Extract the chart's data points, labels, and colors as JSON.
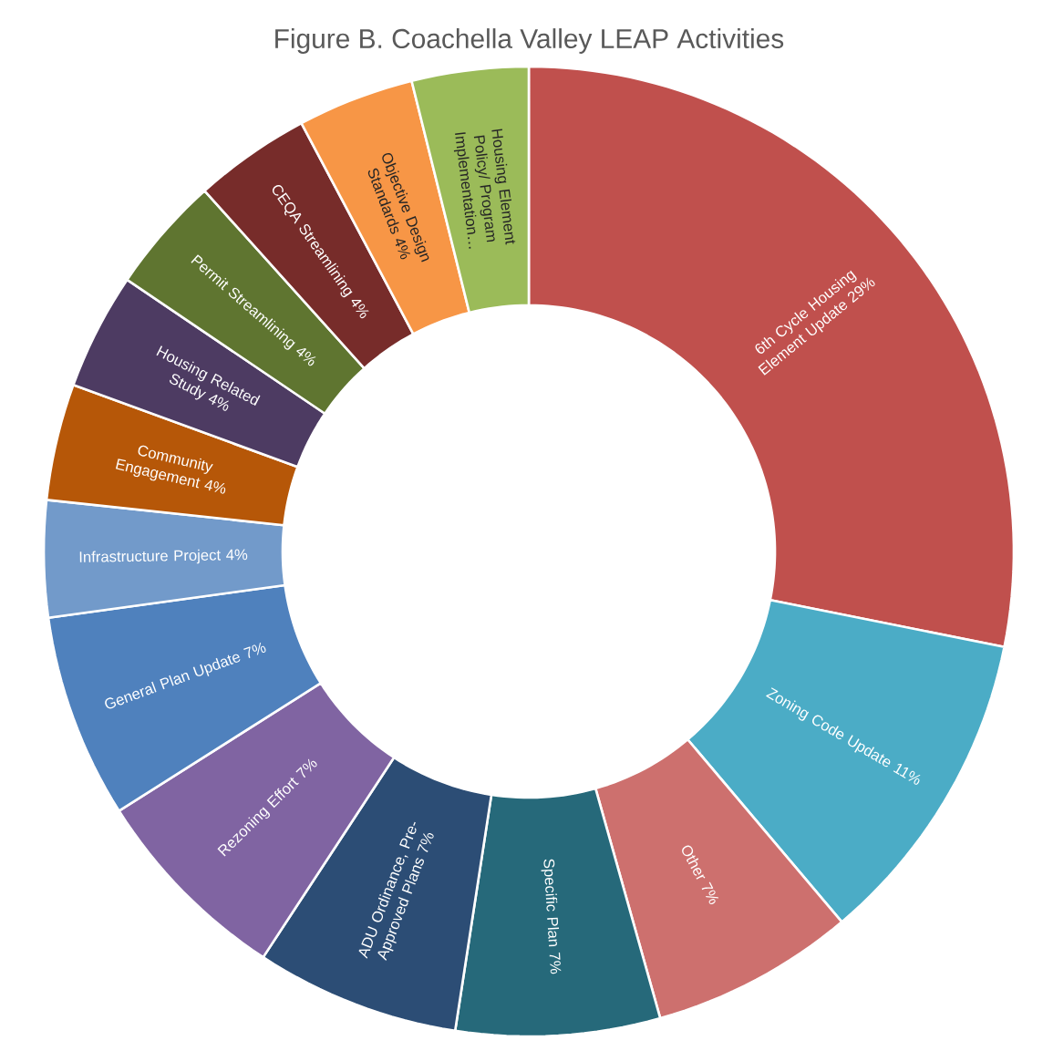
{
  "chart_data": {
    "type": "donut",
    "title": "Figure B. Coachella Valley LEAP Activities",
    "categories": [
      "6th Cycle Housing Element Update",
      "Zoning Code Update",
      "Other",
      "Specific Plan",
      "ADU Ordinance, Pre-Approved Plans",
      "Rezoning Effort",
      "General Plan Update",
      "Infrastructure Project",
      "Community Engagement",
      "Housing Related Study",
      "Permit Streamlining",
      "CEQA Streamlining",
      "Objective Design Standards",
      "Housing Element Policy/ Program Implementation…"
    ],
    "values": [
      29,
      11,
      7,
      7,
      7,
      7,
      7,
      4,
      4,
      4,
      4,
      4,
      4,
      4
    ],
    "value_labels": [
      "29%",
      "11%",
      "7%",
      "7%",
      "7%",
      "7%",
      "7%",
      "4%",
      "4%",
      "4%",
      "4%",
      "4%",
      "4%",
      null
    ],
    "colors": [
      "#C0504D",
      "#4BACC6",
      "#CD706E",
      "#26697A",
      "#2C4D75",
      "#8064A2",
      "#4F81BD",
      "#729ACA",
      "#B65708",
      "#4D3B62",
      "#5F7530",
      "#772C2A",
      "#F79646",
      "#9BBB59"
    ]
  }
}
